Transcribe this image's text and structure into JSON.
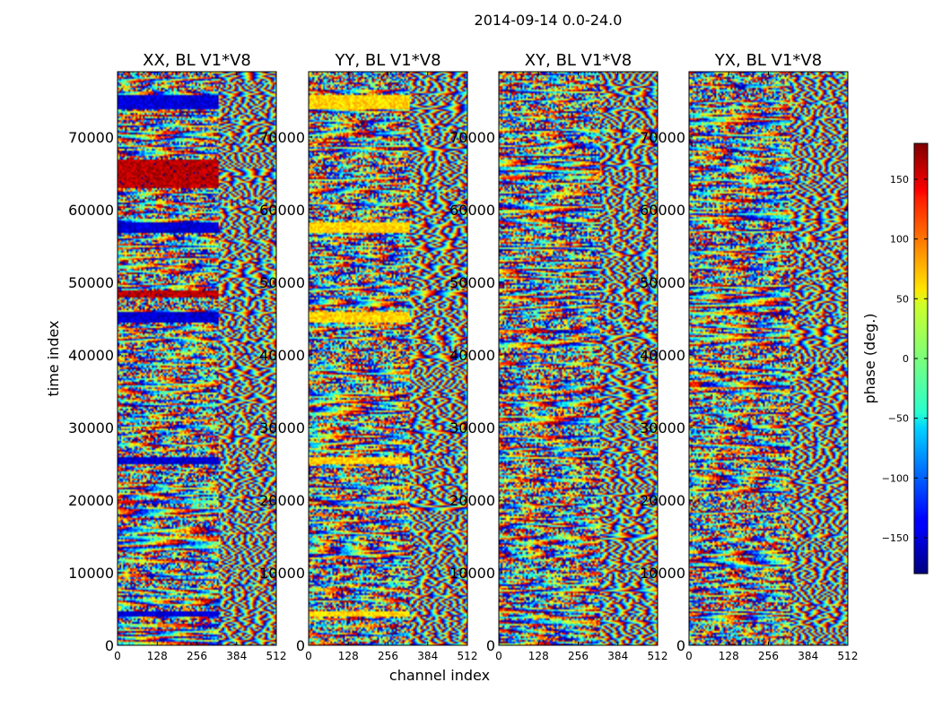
{
  "chart_data": {
    "type": "heatmap",
    "suptitle": "2014-09-14 0.0-24.0",
    "xlabel": "channel index",
    "ylabel": "time index",
    "xlim": [
      0,
      512
    ],
    "ylim": [
      0,
      79000
    ],
    "xticks": [
      0,
      128,
      256,
      384,
      512
    ],
    "xtick_labels": [
      "0",
      "128",
      "256",
      "384",
      "512"
    ],
    "yticks": [
      0,
      10000,
      20000,
      30000,
      40000,
      50000,
      60000,
      70000
    ],
    "ytick_labels": [
      "0",
      "10000",
      "20000",
      "30000",
      "40000",
      "50000",
      "60000",
      "70000"
    ],
    "colorbar": {
      "label": "phase (deg.)",
      "range": [
        -180,
        180
      ],
      "ticks": [
        150,
        100,
        50,
        0,
        -50,
        -100,
        -150
      ],
      "tick_labels": [
        "150",
        "100",
        "50",
        "0",
        "−50",
        "−100",
        "−150"
      ],
      "colormap": "jet"
    },
    "panels": [
      {
        "title": "XX, BL V1*V8",
        "dominant_bands": [
          {
            "t_start": 74000,
            "t_end": 76000,
            "phase": -150
          },
          {
            "t_start": 63000,
            "t_end": 67000,
            "phase": 160
          },
          {
            "t_start": 57000,
            "t_end": 58500,
            "phase": -150
          },
          {
            "t_start": 48000,
            "t_end": 49000,
            "phase": 160
          },
          {
            "t_start": 44500,
            "t_end": 46000,
            "phase": -150
          },
          {
            "t_start": 25000,
            "t_end": 26000,
            "phase": -150
          },
          {
            "t_start": 4000,
            "t_end": 4800,
            "phase": -150
          }
        ]
      },
      {
        "title": "YY, BL V1*V8",
        "dominant_bands": [
          {
            "t_start": 74000,
            "t_end": 76000,
            "phase": 60
          },
          {
            "t_start": 57000,
            "t_end": 58500,
            "phase": 60
          },
          {
            "t_start": 44500,
            "t_end": 46000,
            "phase": 60
          },
          {
            "t_start": 25000,
            "t_end": 26000,
            "phase": 60
          },
          {
            "t_start": 4000,
            "t_end": 4800,
            "phase": 60
          }
        ]
      },
      {
        "title": "XY, BL V1*V8",
        "dominant_bands": []
      },
      {
        "title": "YX, BL V1*V8",
        "dominant_bands": []
      }
    ]
  }
}
